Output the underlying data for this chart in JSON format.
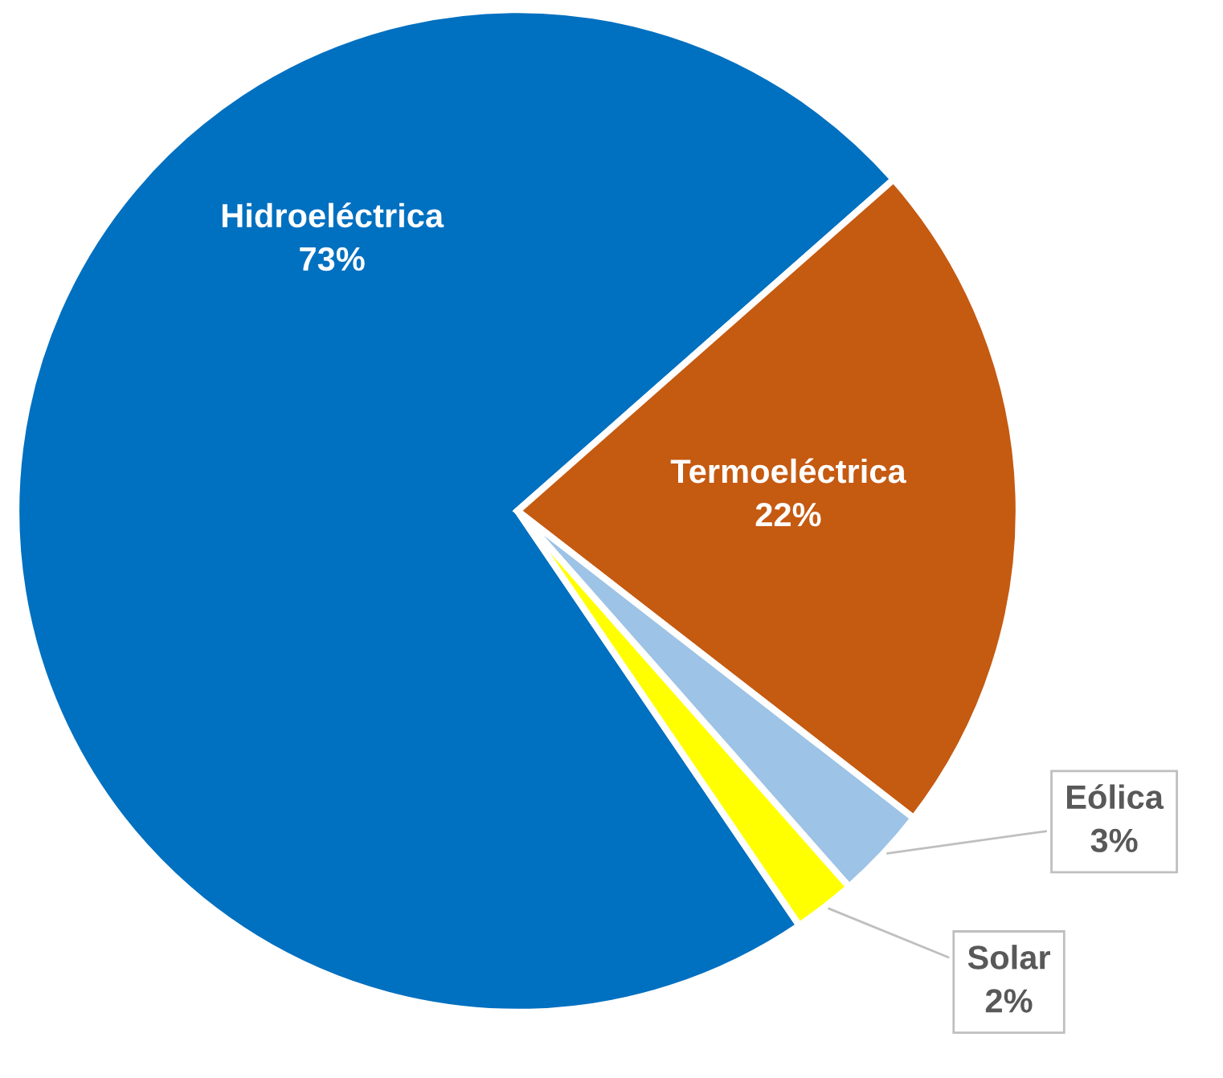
{
  "chart_data": {
    "type": "pie",
    "categories": [
      "Hidroeléctrica",
      "Termoeléctrica",
      "Eólica",
      "Solar"
    ],
    "values": [
      73,
      22,
      3,
      2
    ],
    "value_labels": [
      "73%",
      "22%",
      "3%",
      "2%"
    ],
    "colors": [
      "#0070c0",
      "#c55a11",
      "#9dc3e6",
      "#ffff00"
    ],
    "legend": false
  }
}
